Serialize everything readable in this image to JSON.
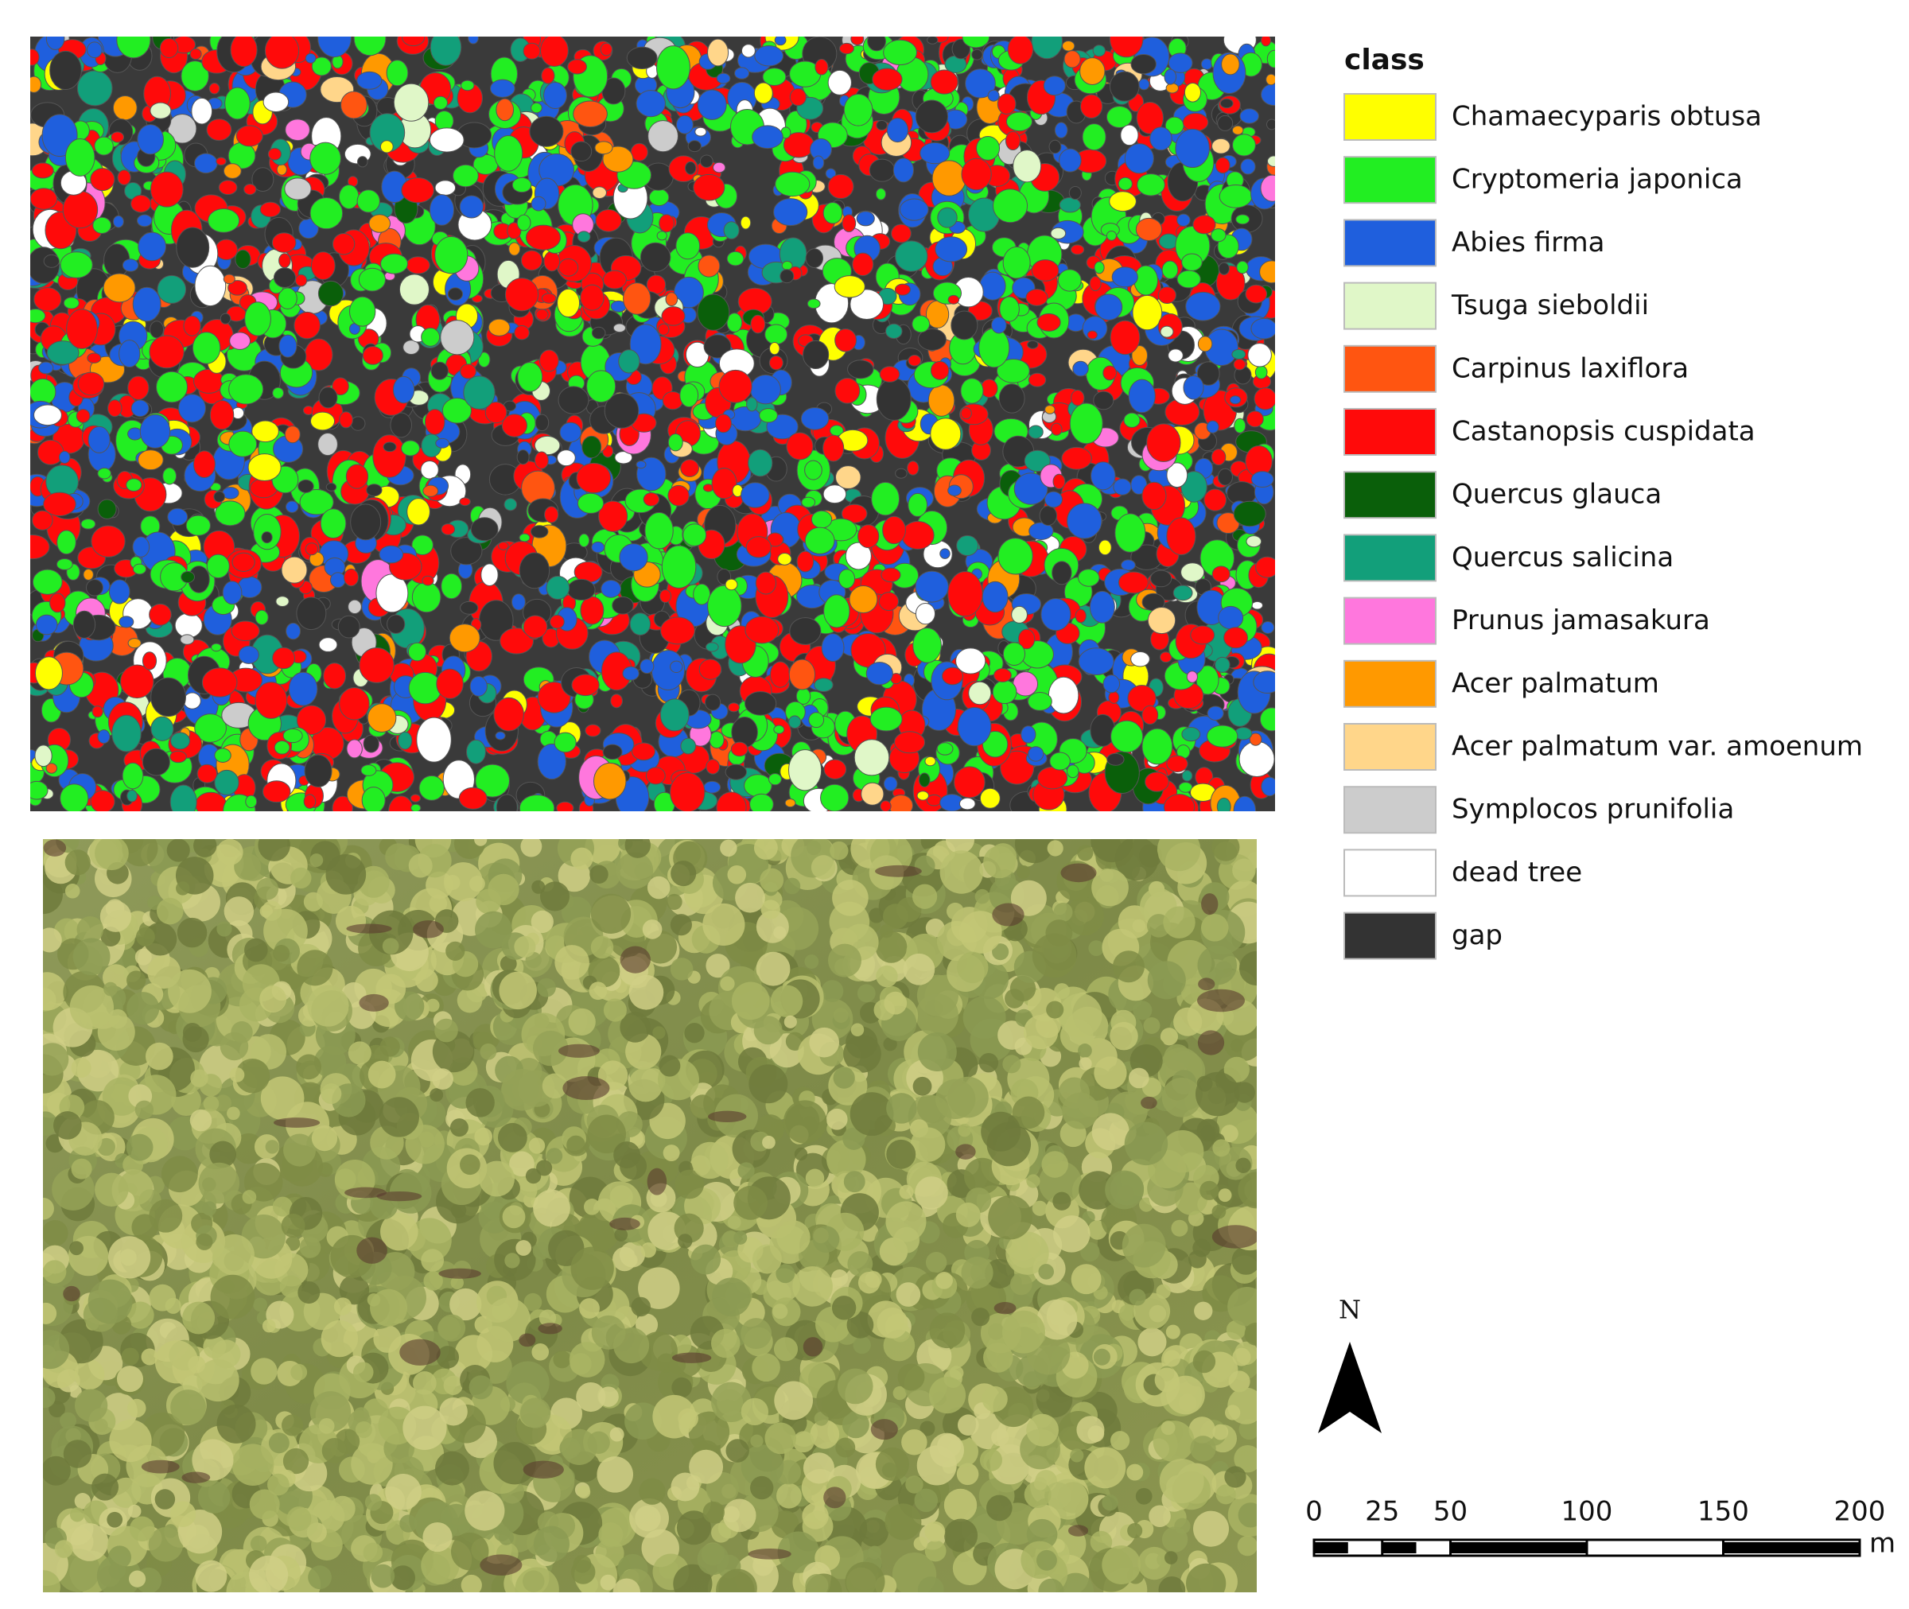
{
  "legend": {
    "title": "class",
    "items": [
      {
        "label": "Chamaecyparis obtusa",
        "color": "#ffff00"
      },
      {
        "label": "Cryptomeria japonica",
        "color": "#22ee22"
      },
      {
        "label": "Abies firma",
        "color": "#1f5fdd"
      },
      {
        "label": "Tsuga sieboldii",
        "color": "#e0f7c8"
      },
      {
        "label": "Carpinus laxiflora",
        "color": "#ff5511"
      },
      {
        "label": "Castanopsis cuspidata",
        "color": "#ff0a0a"
      },
      {
        "label": "Quercus glauca",
        "color": "#0a5f0a"
      },
      {
        "label": "Quercus salicina",
        "color": "#129f7a"
      },
      {
        "label": "Prunus jamasakura",
        "color": "#ff77dd"
      },
      {
        "label": "Acer palmatum",
        "color": "#ff9900"
      },
      {
        "label": "Acer palmatum var. amoenum",
        "color": "#ffd68a"
      },
      {
        "label": "Symplocos prunifolia",
        "color": "#cccccc"
      },
      {
        "label": "dead tree",
        "color": "#ffffff"
      },
      {
        "label": "gap",
        "color": "#333333"
      }
    ]
  },
  "north_arrow": {
    "label": "N"
  },
  "scale_bar": {
    "ticks": [
      0,
      25,
      50,
      100,
      150,
      200
    ],
    "unit": "m"
  }
}
